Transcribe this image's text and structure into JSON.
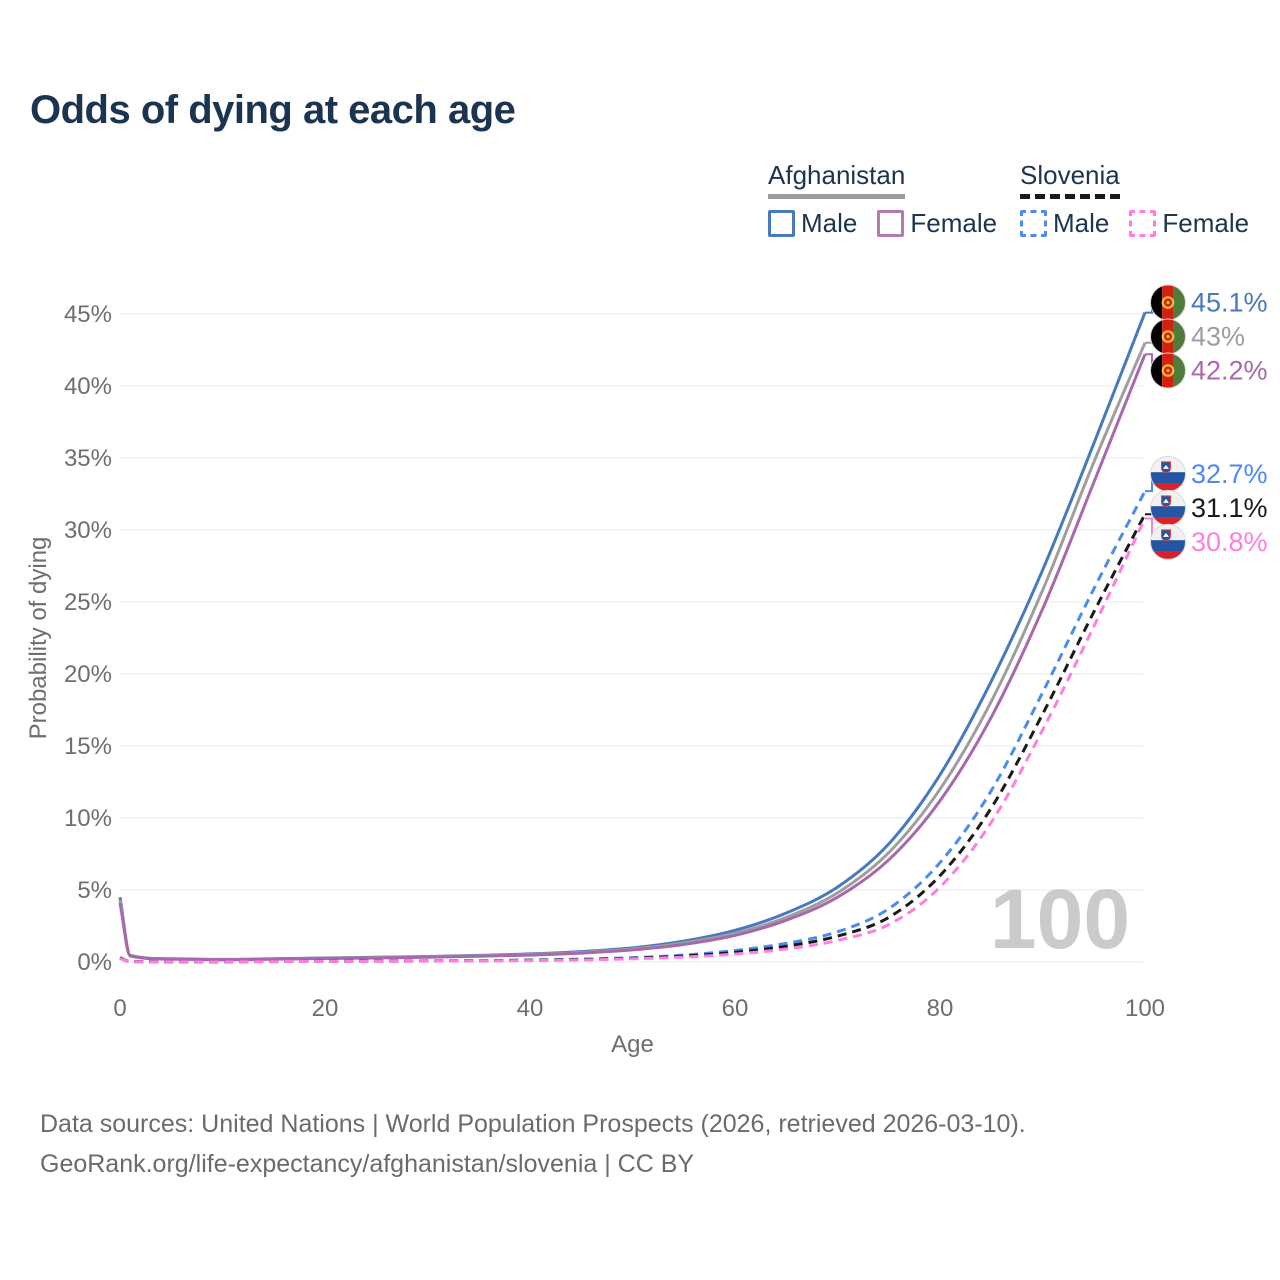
{
  "title": "Odds of dying at each age",
  "watermark": "100",
  "colors": {
    "title_text": "#1b3452",
    "legend_text": "#1d3450",
    "axis_text": "#6e6e6e",
    "gridline": "#e8e8e8",
    "watermark": "#cbcbcb",
    "footer_text": "#6b6b6b",
    "afghanistan_male": "#4679bd",
    "afghanistan_all": "#9e9e9e",
    "afghanistan_female": "#a868ad",
    "slovenia_male": "#4d8af0",
    "slovenia_all": "#1a1a1a",
    "slovenia_female": "#ff7ee0"
  },
  "legend": {
    "groups": [
      {
        "name": "Afghanistan",
        "line_style": "solid",
        "underline_color": "#9e9e9e",
        "items": [
          {
            "label": "Male",
            "color": "#4679bd"
          },
          {
            "label": "Female",
            "color": "#b279b7"
          }
        ]
      },
      {
        "name": "Slovenia",
        "line_style": "dashed",
        "underline_color": "#1a1a1a",
        "items": [
          {
            "label": "Male",
            "color": "#4d8af0"
          },
          {
            "label": "Female",
            "color": "#ff7ee0"
          }
        ]
      }
    ]
  },
  "footer": {
    "line1": "Data sources: United Nations | World Population Prospects (2026, retrieved 2026-03-10).",
    "line2": "GeoRank.org/life-expectancy/afghanistan/slovenia | CC BY"
  },
  "chart_data": {
    "type": "line",
    "title": "Odds of dying at each age",
    "xlabel": "Age",
    "ylabel": "Probability of dying",
    "xlim": [
      0,
      100
    ],
    "ylim_pct": [
      0,
      45
    ],
    "x_ticks": [
      0,
      20,
      40,
      60,
      80,
      100
    ],
    "y_ticks_pct": [
      0,
      5,
      10,
      15,
      20,
      25,
      30,
      35,
      40,
      45
    ],
    "grid": "horizontal",
    "current_age_marker": "100",
    "series": [
      {
        "name": "Afghanistan Male",
        "country": "Afghanistan",
        "group": "male",
        "color": "#4679bd",
        "dash": "solid",
        "end_label": "45.1%",
        "flag": "afghanistan",
        "points": [
          [
            0,
            4.5
          ],
          [
            1,
            0.45
          ],
          [
            5,
            0.22
          ],
          [
            10,
            0.18
          ],
          [
            15,
            0.22
          ],
          [
            20,
            0.28
          ],
          [
            25,
            0.33
          ],
          [
            30,
            0.38
          ],
          [
            35,
            0.46
          ],
          [
            40,
            0.56
          ],
          [
            45,
            0.72
          ],
          [
            50,
            0.98
          ],
          [
            55,
            1.45
          ],
          [
            60,
            2.2
          ],
          [
            65,
            3.4
          ],
          [
            70,
            5.2
          ],
          [
            75,
            8.2
          ],
          [
            80,
            13.0
          ],
          [
            85,
            19.5
          ],
          [
            90,
            27.2
          ],
          [
            95,
            36.0
          ],
          [
            100,
            45.1
          ]
        ]
      },
      {
        "name": "Afghanistan Combined",
        "country": "Afghanistan",
        "group": "all",
        "color": "#9e9e9e",
        "dash": "solid",
        "end_label": "43%",
        "flag": "afghanistan",
        "points": [
          [
            0,
            4.3
          ],
          [
            1,
            0.43
          ],
          [
            5,
            0.21
          ],
          [
            10,
            0.17
          ],
          [
            15,
            0.21
          ],
          [
            20,
            0.26
          ],
          [
            25,
            0.31
          ],
          [
            30,
            0.36
          ],
          [
            35,
            0.43
          ],
          [
            40,
            0.52
          ],
          [
            45,
            0.67
          ],
          [
            50,
            0.91
          ],
          [
            55,
            1.33
          ],
          [
            60,
            2.0
          ],
          [
            65,
            3.1
          ],
          [
            70,
            4.8
          ],
          [
            75,
            7.6
          ],
          [
            80,
            12.0
          ],
          [
            85,
            18.1
          ],
          [
            90,
            25.8
          ],
          [
            95,
            34.7
          ],
          [
            100,
            43.0
          ]
        ]
      },
      {
        "name": "Afghanistan Female",
        "country": "Afghanistan",
        "group": "female",
        "color": "#a868ad",
        "dash": "solid",
        "end_label": "42.2%",
        "flag": "afghanistan",
        "points": [
          [
            0,
            4.1
          ],
          [
            1,
            0.41
          ],
          [
            5,
            0.2
          ],
          [
            10,
            0.16
          ],
          [
            15,
            0.2
          ],
          [
            20,
            0.24
          ],
          [
            25,
            0.28
          ],
          [
            30,
            0.33
          ],
          [
            35,
            0.4
          ],
          [
            40,
            0.48
          ],
          [
            45,
            0.62
          ],
          [
            50,
            0.84
          ],
          [
            55,
            1.22
          ],
          [
            60,
            1.85
          ],
          [
            65,
            2.9
          ],
          [
            70,
            4.5
          ],
          [
            75,
            7.1
          ],
          [
            80,
            11.2
          ],
          [
            85,
            17.0
          ],
          [
            90,
            24.5
          ],
          [
            95,
            33.3
          ],
          [
            100,
            42.2
          ]
        ]
      },
      {
        "name": "Slovenia Male",
        "country": "Slovenia",
        "group": "male",
        "color": "#4d8af0",
        "dash": "dashed",
        "end_label": "32.7%",
        "flag": "slovenia",
        "points": [
          [
            0,
            0.3
          ],
          [
            1,
            0.03
          ],
          [
            5,
            0.02
          ],
          [
            10,
            0.02
          ],
          [
            15,
            0.04
          ],
          [
            20,
            0.06
          ],
          [
            25,
            0.07
          ],
          [
            30,
            0.08
          ],
          [
            35,
            0.1
          ],
          [
            40,
            0.14
          ],
          [
            45,
            0.2
          ],
          [
            50,
            0.3
          ],
          [
            55,
            0.48
          ],
          [
            60,
            0.8
          ],
          [
            65,
            1.3
          ],
          [
            70,
            2.1
          ],
          [
            75,
            3.7
          ],
          [
            80,
            6.9
          ],
          [
            85,
            11.9
          ],
          [
            90,
            18.7
          ],
          [
            95,
            25.9
          ],
          [
            100,
            32.7
          ]
        ]
      },
      {
        "name": "Slovenia Combined",
        "country": "Slovenia",
        "group": "all",
        "color": "#1a1a1a",
        "dash": "dashed",
        "end_label": "31.1%",
        "flag": "slovenia",
        "points": [
          [
            0,
            0.27
          ],
          [
            1,
            0.03
          ],
          [
            5,
            0.02
          ],
          [
            10,
            0.02
          ],
          [
            15,
            0.03
          ],
          [
            20,
            0.05
          ],
          [
            25,
            0.06
          ],
          [
            30,
            0.07
          ],
          [
            35,
            0.09
          ],
          [
            40,
            0.12
          ],
          [
            45,
            0.17
          ],
          [
            50,
            0.26
          ],
          [
            55,
            0.41
          ],
          [
            60,
            0.67
          ],
          [
            65,
            1.1
          ],
          [
            70,
            1.8
          ],
          [
            75,
            3.1
          ],
          [
            80,
            6.0
          ],
          [
            85,
            10.7
          ],
          [
            90,
            17.2
          ],
          [
            95,
            24.3
          ],
          [
            100,
            31.1
          ]
        ]
      },
      {
        "name": "Slovenia Female",
        "country": "Slovenia",
        "group": "female",
        "color": "#ff7ee0",
        "dash": "dashed",
        "end_label": "30.8%",
        "flag": "slovenia",
        "points": [
          [
            0,
            0.24
          ],
          [
            1,
            0.02
          ],
          [
            5,
            0.02
          ],
          [
            10,
            0.02
          ],
          [
            15,
            0.03
          ],
          [
            20,
            0.04
          ],
          [
            25,
            0.05
          ],
          [
            30,
            0.06
          ],
          [
            35,
            0.08
          ],
          [
            40,
            0.1
          ],
          [
            45,
            0.14
          ],
          [
            50,
            0.22
          ],
          [
            55,
            0.34
          ],
          [
            60,
            0.55
          ],
          [
            65,
            0.9
          ],
          [
            70,
            1.5
          ],
          [
            75,
            2.6
          ],
          [
            80,
            5.2
          ],
          [
            85,
            9.7
          ],
          [
            90,
            16.1
          ],
          [
            95,
            23.3
          ],
          [
            100,
            30.8
          ]
        ]
      }
    ]
  }
}
